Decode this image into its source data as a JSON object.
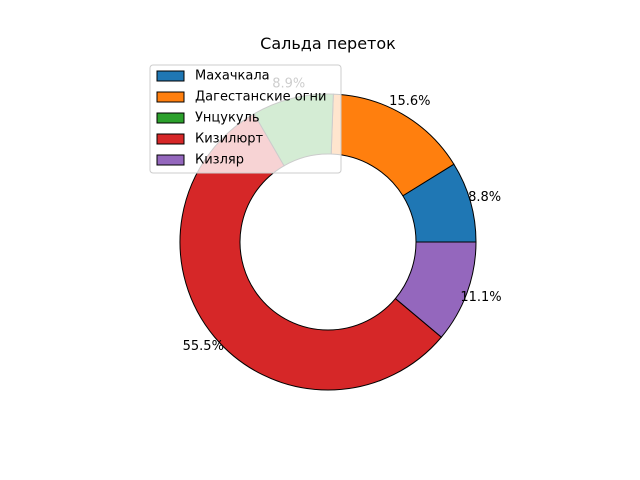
{
  "chart_data": {
    "type": "pie",
    "donut": true,
    "title": "Сальда переток",
    "slices": [
      {
        "label": "Махачкала",
        "value": 8.8,
        "pct_label": "8.8%",
        "color": "#1f77b4"
      },
      {
        "label": "Дагестанские огни",
        "value": 15.6,
        "pct_label": "15.6%",
        "color": "#ff7f0e"
      },
      {
        "label": "Унцукуль",
        "value": 8.9,
        "pct_label": "8.9%",
        "color": "#2ca02c"
      },
      {
        "label": "Кизилюрт",
        "value": 55.5,
        "pct_label": "55.5%",
        "color": "#d62728"
      },
      {
        "label": "Кизляр",
        "value": 11.1,
        "pct_label": "11.1%",
        "color": "#9467bd"
      }
    ],
    "legend_position": "upper-left"
  }
}
